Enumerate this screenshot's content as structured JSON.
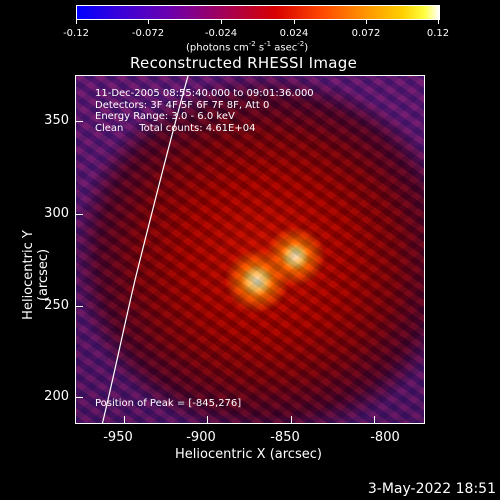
{
  "colorbar": {
    "ticks": [
      "-0.12",
      "-0.072",
      "-0.024",
      "0.024",
      "0.072",
      "0.12"
    ],
    "unit_prefix": "(photons cm",
    "unit_exp1": "-2",
    "unit_mid1": " s",
    "unit_exp2": "-1",
    "unit_mid2": " asec",
    "unit_exp3": "-2",
    "unit_suffix": ")"
  },
  "title": "Reconstructed RHESSI Image",
  "info": {
    "line1": "11-Dec-2005 08:55:40.000 to 09:01:36.000",
    "line2": "Detectors: 3F 4F 5F 6F 7F 8F, Att 0",
    "line3": "Energy Range: 3.0 - 6.0 keV",
    "line4": "Clean     Total counts: 4.61E+04"
  },
  "peak": "Position of Peak = [-845,276]",
  "axes": {
    "x_label": "Heliocentric X (arcsec)",
    "y_label": "Heliocentric Y (arcsec)",
    "x_ticks": [
      "-950",
      "-900",
      "-850",
      "-800"
    ],
    "y_ticks": [
      "350",
      "300",
      "250",
      "200"
    ]
  },
  "footer_date": "3-May-2022 18:51",
  "colors": {
    "background": "#000000",
    "text": "#ffffff",
    "limb": "#ffffff"
  }
}
